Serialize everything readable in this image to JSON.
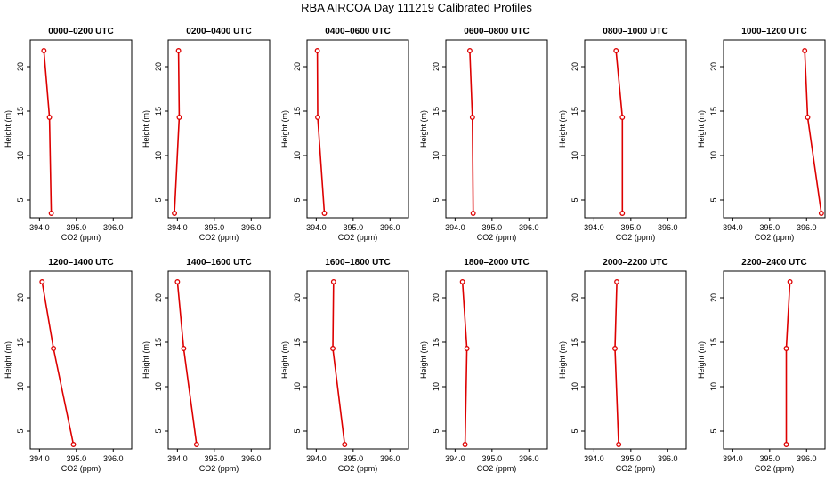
{
  "page": {
    "title": "RBA AIRCOA  Day 111219  Calibrated Profiles"
  },
  "colors": {
    "line": "#dd0000",
    "marker": "#dd0000",
    "axis": "#000000",
    "background": "#ffffff"
  },
  "chart_data": [
    {
      "type": "line",
      "title": "0000–0200 UTC",
      "xlabel": "CO2 (ppm)",
      "ylabel": "Height (m)",
      "xlim": [
        393.75,
        396.5
      ],
      "ylim": [
        3,
        23
      ],
      "xticks": [
        "394.0",
        "395.0",
        "396.0"
      ],
      "yticks": [
        "5",
        "10",
        "15",
        "20"
      ],
      "series": [
        {
          "name": "profile",
          "x": [
            394.32,
            394.27,
            394.12
          ],
          "y": [
            3.5,
            14.3,
            21.8
          ]
        }
      ]
    },
    {
      "type": "line",
      "title": "0200–0400 UTC",
      "xlabel": "CO2 (ppm)",
      "ylabel": "Height (m)",
      "xlim": [
        393.75,
        396.5
      ],
      "ylim": [
        3,
        23
      ],
      "xticks": [
        "394.0",
        "395.0",
        "396.0"
      ],
      "yticks": [
        "5",
        "10",
        "15",
        "20"
      ],
      "series": [
        {
          "name": "profile",
          "x": [
            393.92,
            394.05,
            394.03
          ],
          "y": [
            3.5,
            14.3,
            21.8
          ]
        }
      ]
    },
    {
      "type": "line",
      "title": "0400–0600 UTC",
      "xlabel": "CO2 (ppm)",
      "ylabel": "Height (m)",
      "xlim": [
        393.75,
        396.5
      ],
      "ylim": [
        3,
        23
      ],
      "xticks": [
        "394.0",
        "395.0",
        "396.0"
      ],
      "yticks": [
        "5",
        "10",
        "15",
        "20"
      ],
      "series": [
        {
          "name": "profile",
          "x": [
            394.22,
            394.04,
            394.03
          ],
          "y": [
            3.5,
            14.3,
            21.8
          ]
        }
      ]
    },
    {
      "type": "line",
      "title": "0600–0800 UTC",
      "xlabel": "CO2 (ppm)",
      "ylabel": "Height (m)",
      "xlim": [
        393.75,
        396.5
      ],
      "ylim": [
        3,
        23
      ],
      "xticks": [
        "394.0",
        "395.0",
        "396.0"
      ],
      "yticks": [
        "5",
        "10",
        "15",
        "20"
      ],
      "series": [
        {
          "name": "profile",
          "x": [
            394.49,
            394.47,
            394.4
          ],
          "y": [
            3.5,
            14.3,
            21.8
          ]
        }
      ]
    },
    {
      "type": "line",
      "title": "0800–1000 UTC",
      "xlabel": "CO2 (ppm)",
      "ylabel": "Height (m)",
      "xlim": [
        393.75,
        396.5
      ],
      "ylim": [
        3,
        23
      ],
      "xticks": [
        "394.0",
        "395.0",
        "396.0"
      ],
      "yticks": [
        "5",
        "10",
        "15",
        "20"
      ],
      "series": [
        {
          "name": "profile",
          "x": [
            394.77,
            394.77,
            394.6
          ],
          "y": [
            3.5,
            14.3,
            21.8
          ]
        }
      ]
    },
    {
      "type": "line",
      "title": "1000–1200 UTC",
      "xlabel": "CO2 (ppm)",
      "ylabel": "Height (m)",
      "xlim": [
        393.75,
        396.5
      ],
      "ylim": [
        3,
        23
      ],
      "xticks": [
        "394.0",
        "395.0",
        "396.0"
      ],
      "yticks": [
        "5",
        "10",
        "15",
        "20"
      ],
      "series": [
        {
          "name": "profile",
          "x": [
            396.4,
            396.03,
            395.95
          ],
          "y": [
            3.5,
            14.3,
            21.8
          ]
        }
      ]
    },
    {
      "type": "line",
      "title": "1200–1400 UTC",
      "xlabel": "CO2 (ppm)",
      "ylabel": "Height (m)",
      "xlim": [
        393.75,
        396.5
      ],
      "ylim": [
        3,
        23
      ],
      "xticks": [
        "394.0",
        "395.0",
        "396.0"
      ],
      "yticks": [
        "5",
        "10",
        "15",
        "20"
      ],
      "series": [
        {
          "name": "profile",
          "x": [
            394.92,
            394.38,
            394.07
          ],
          "y": [
            3.5,
            14.3,
            21.8
          ]
        }
      ]
    },
    {
      "type": "line",
      "title": "1400–1600 UTC",
      "xlabel": "CO2 (ppm)",
      "ylabel": "Height (m)",
      "xlim": [
        393.75,
        396.5
      ],
      "ylim": [
        3,
        23
      ],
      "xticks": [
        "394.0",
        "395.0",
        "396.0"
      ],
      "yticks": [
        "5",
        "10",
        "15",
        "20"
      ],
      "series": [
        {
          "name": "profile",
          "x": [
            394.52,
            394.17,
            394.0
          ],
          "y": [
            3.5,
            14.3,
            21.8
          ]
        }
      ]
    },
    {
      "type": "line",
      "title": "1600–1800 UTC",
      "xlabel": "CO2 (ppm)",
      "ylabel": "Height (m)",
      "xlim": [
        393.75,
        396.5
      ],
      "ylim": [
        3,
        23
      ],
      "xticks": [
        "394.0",
        "395.0",
        "396.0"
      ],
      "yticks": [
        "5",
        "10",
        "15",
        "20"
      ],
      "series": [
        {
          "name": "profile",
          "x": [
            394.77,
            394.45,
            394.47
          ],
          "y": [
            3.5,
            14.3,
            21.8
          ]
        }
      ]
    },
    {
      "type": "line",
      "title": "1800–2000 UTC",
      "xlabel": "CO2 (ppm)",
      "ylabel": "Height (m)",
      "xlim": [
        393.75,
        396.5
      ],
      "ylim": [
        3,
        23
      ],
      "xticks": [
        "394.0",
        "395.0",
        "396.0"
      ],
      "yticks": [
        "5",
        "10",
        "15",
        "20"
      ],
      "series": [
        {
          "name": "profile",
          "x": [
            394.27,
            394.32,
            394.2
          ],
          "y": [
            3.5,
            14.3,
            21.8
          ]
        }
      ]
    },
    {
      "type": "line",
      "title": "2000–2200 UTC",
      "xlabel": "CO2 (ppm)",
      "ylabel": "Height (m)",
      "xlim": [
        393.75,
        396.5
      ],
      "ylim": [
        3,
        23
      ],
      "xticks": [
        "394.0",
        "395.0",
        "396.0"
      ],
      "yticks": [
        "5",
        "10",
        "15",
        "20"
      ],
      "series": [
        {
          "name": "profile",
          "x": [
            394.67,
            394.57,
            394.62
          ],
          "y": [
            3.5,
            14.3,
            21.8
          ]
        }
      ]
    },
    {
      "type": "line",
      "title": "2200–2400 UTC",
      "xlabel": "CO2 (ppm)",
      "ylabel": "Height (m)",
      "xlim": [
        393.75,
        396.5
      ],
      "ylim": [
        3,
        23
      ],
      "xticks": [
        "394.0",
        "395.0",
        "396.0"
      ],
      "yticks": [
        "5",
        "10",
        "15",
        "20"
      ],
      "series": [
        {
          "name": "profile",
          "x": [
            395.45,
            395.45,
            395.55
          ],
          "y": [
            3.5,
            14.3,
            21.8
          ]
        }
      ]
    }
  ]
}
